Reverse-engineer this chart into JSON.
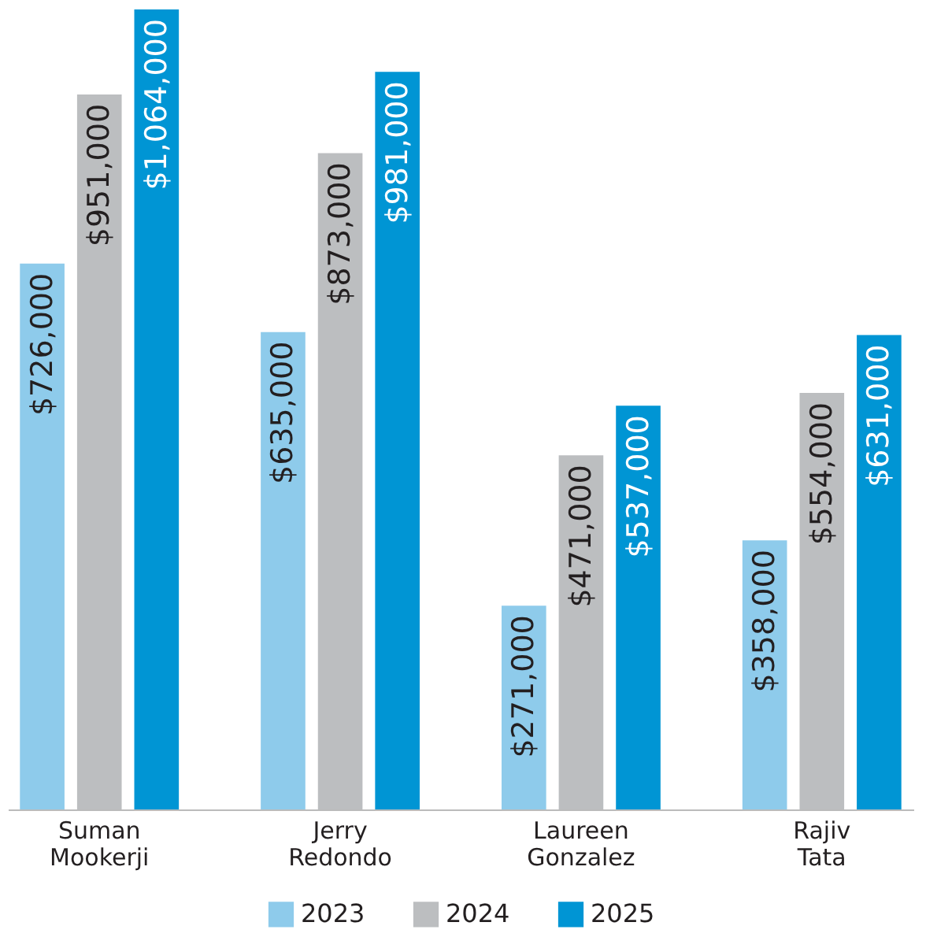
{
  "chart_data": {
    "type": "bar",
    "categories": [
      "Suman Mookerji",
      "Jerry Redondo",
      "Laureen Gonzalez",
      "Rajiv Tata"
    ],
    "series": [
      {
        "name": "2023",
        "color": "#8ecbeb",
        "values": [
          726000,
          635000,
          271000,
          358000
        ],
        "value_labels": [
          "$726,000",
          "$635,000",
          "$271,000",
          "$358,000"
        ]
      },
      {
        "name": "2024",
        "color": "#bcbec0",
        "values": [
          951000,
          873000,
          471000,
          554000
        ],
        "value_labels": [
          "$951,000",
          "$873,000",
          "$471,000",
          "$554,000"
        ]
      },
      {
        "name": "2025",
        "color": "#0095d4",
        "values": [
          1064000,
          981000,
          537000,
          631000
        ],
        "value_labels": [
          "$1,064,000",
          "$981,000",
          "$537,000",
          "$631,000"
        ]
      }
    ],
    "legend": "bottom",
    "grid": false
  }
}
